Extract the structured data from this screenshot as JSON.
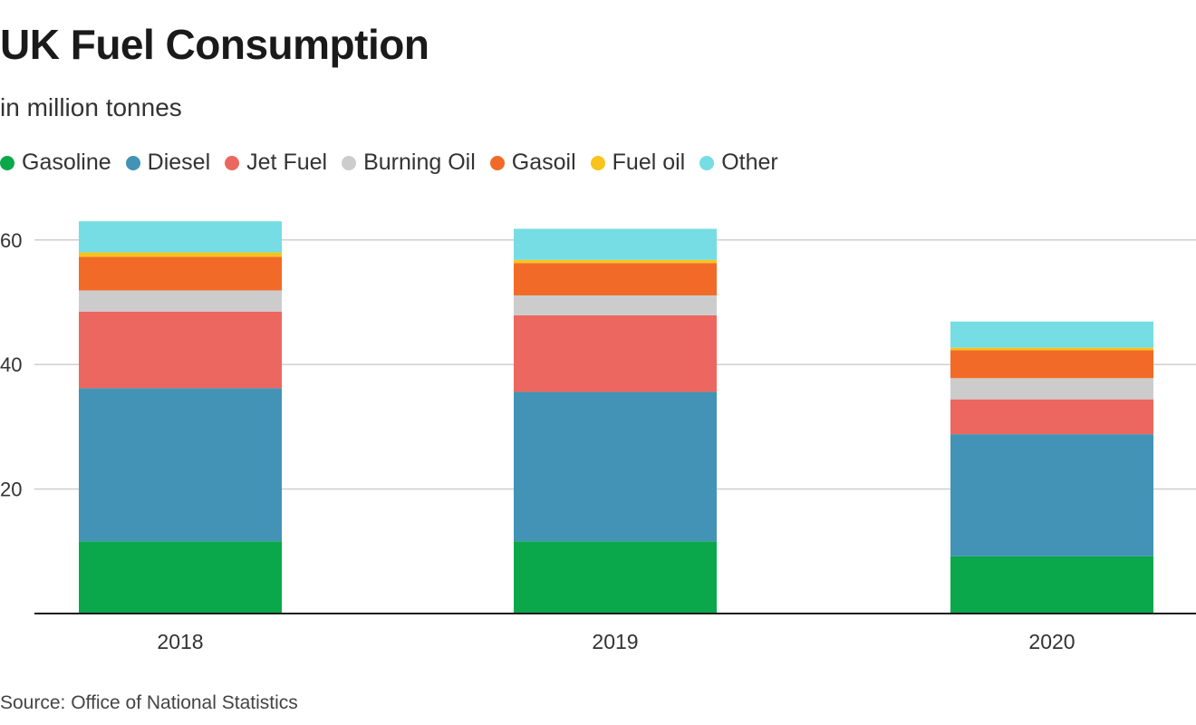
{
  "title": "UK Fuel Consumption",
  "subtitle": "in million tonnes",
  "source": "Source: Office of National Statistics",
  "legend": [
    {
      "name": "Gasoline",
      "color": "#0aa84b"
    },
    {
      "name": "Diesel",
      "color": "#4293b5"
    },
    {
      "name": "Jet Fuel",
      "color": "#ec675f"
    },
    {
      "name": "Burning Oil",
      "color": "#cccccc"
    },
    {
      "name": "Gasoil",
      "color": "#f26a27"
    },
    {
      "name": "Fuel oil",
      "color": "#f8c41b"
    },
    {
      "name": "Other",
      "color": "#75dde3"
    }
  ],
  "chart_data": {
    "type": "bar",
    "stacked": true,
    "categories": [
      "2018",
      "2019",
      "2020"
    ],
    "series": [
      {
        "name": "Gasoline",
        "color": "#0aa84b",
        "values": [
          11.6,
          11.6,
          9.2
        ]
      },
      {
        "name": "Diesel",
        "color": "#4293b5",
        "values": [
          24.6,
          24.0,
          19.6
        ]
      },
      {
        "name": "Jet Fuel",
        "color": "#ec675f",
        "values": [
          12.3,
          12.3,
          5.6
        ]
      },
      {
        "name": "Burning Oil",
        "color": "#cccccc",
        "values": [
          3.4,
          3.2,
          3.4
        ]
      },
      {
        "name": "Gasoil",
        "color": "#f26a27",
        "values": [
          5.4,
          5.2,
          4.5
        ]
      },
      {
        "name": "Fuel oil",
        "color": "#f8c41b",
        "values": [
          0.7,
          0.5,
          0.4
        ]
      },
      {
        "name": "Other",
        "color": "#75dde3",
        "values": [
          5.0,
          5.0,
          4.2
        ]
      }
    ],
    "ylim": [
      0,
      63
    ],
    "yticks": [
      20,
      40,
      60
    ],
    "grid": true,
    "legend_position": "top-left"
  }
}
